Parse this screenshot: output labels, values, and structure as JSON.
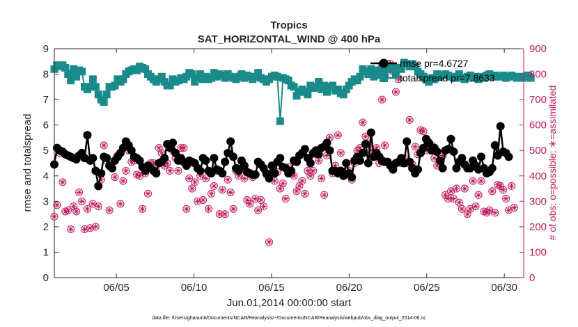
{
  "chart_data": {
    "type": "line",
    "title": "Tropics",
    "subtitle": "SAT_HORIZONTAL_WIND @ 400 hPa",
    "xlabel": "Jun.01,2014 00:00:00 start",
    "ylabel": "rmse and totalspread",
    "ylabel_right": "# of obs: o=possible; ∗=assimilated",
    "footnote": "data file: /Users/gharamti/Documents/NCAR/Reanalysis/~/Documents/NCAR/Reanalysis/webpub/obs_diag_output_2014-06.nc",
    "xlim": [
      1,
      31.25
    ],
    "ylim": [
      0,
      9
    ],
    "ylim_right": [
      0,
      900
    ],
    "x_ticks": [
      5,
      10,
      15,
      20,
      25,
      30
    ],
    "x_tick_labels": [
      "06/05",
      "06/10",
      "06/15",
      "06/20",
      "06/25",
      "06/30"
    ],
    "y_ticks": [
      "0",
      "1",
      "2",
      "3",
      "4",
      "5",
      "6",
      "7",
      "8",
      "9"
    ],
    "y_ticks_right": [
      "0",
      "100",
      "200",
      "300",
      "400",
      "500",
      "600",
      "700",
      "800",
      "900"
    ],
    "colors": {
      "rmse": "#000000",
      "spread": "#1a8a8a",
      "obs": "#c2185b",
      "axis": "#262626"
    },
    "series": [
      {
        "name": "rmse",
        "legend": "rmse pr=4.6727",
        "axis": "left",
        "values": [
          4.45,
          5.1,
          5.0,
          4.95,
          4.85,
          4.8,
          4.75,
          4.7,
          4.65,
          4.8,
          4.9,
          4.7,
          5.6,
          4.6,
          4.7,
          4.2,
          3.6,
          4.1,
          4.75,
          4.7,
          4.4,
          4.3,
          4.6,
          4.75,
          4.9,
          5.1,
          5.35,
          5.2,
          5.0,
          4.75,
          4.7,
          4.6,
          4.35,
          4.2,
          4.4,
          4.3,
          4.2,
          4.1,
          4.5,
          4.55,
          4.7,
          5.25,
          5.1,
          5.3,
          4.9,
          4.6,
          4.7,
          4.55,
          4.4,
          4.6,
          4.55,
          4.5,
          4.3,
          4.2,
          4.7,
          4.6,
          4.2,
          4.1,
          4.7,
          4.25,
          4.2,
          4.1,
          4.55,
          4.9,
          5.35,
          4.75,
          4.3,
          4.2,
          4.6,
          4.4,
          4.15,
          4.1,
          4.05,
          4.05,
          4.55,
          4.45,
          4.3,
          4.1,
          3.9,
          4.4,
          4.1,
          4.55,
          4.7,
          4.35,
          4.3,
          4.1,
          4.2,
          4.6,
          4.55,
          4.8,
          4.9,
          5.05,
          4.7,
          4.5,
          4.9,
          5.0,
          4.85,
          5.1,
          5.15,
          5.3,
          5.0,
          4.2,
          4.2,
          4.1,
          4.2,
          4.0,
          4.5,
          4.1,
          3.95,
          4.6,
          4.75,
          4.6,
          4.9,
          5.25,
          4.5,
          5.7,
          4.75,
          4.9,
          4.75,
          4.6,
          4.55,
          4.55,
          4.4,
          4.25,
          4.5,
          4.55,
          4.7,
          4.5,
          5.35,
          4.55,
          4.3,
          4.1,
          4.25,
          4.9,
          5.1,
          5.45,
          5.3,
          5.0,
          5.1,
          4.95,
          4.6,
          4.3,
          5.0,
          5.05,
          5.45,
          4.95,
          4.3,
          4.55,
          4.7,
          4.45,
          4.3,
          4.3,
          4.6,
          4.4,
          4.25,
          4.75,
          4.3,
          4.1,
          4.15,
          4.3,
          5.2,
          4.8,
          5.95,
          4.95,
          4.9,
          4.75
        ]
      },
      {
        "name": "totalspread",
        "legend": "totalspread pr=7.8633",
        "axis": "left",
        "values": [
          8.2,
          8.35,
          8.3,
          8.35,
          8.25,
          8.0,
          7.75,
          8.2,
          7.9,
          8.15,
          8.1,
          7.5,
          7.4,
          7.5,
          7.8,
          7.5,
          7.2,
          7.0,
          6.9,
          7.2,
          7.5,
          7.5,
          7.55,
          7.8,
          7.7,
          7.8,
          8.0,
          8.1,
          8.15,
          8.2,
          8.15,
          8.3,
          8.25,
          8.2,
          8.0,
          7.9,
          7.8,
          7.7,
          7.8,
          7.9,
          7.7,
          7.55,
          7.55,
          7.8,
          7.7,
          7.75,
          7.85,
          7.8,
          7.9,
          8.05,
          8.0,
          7.7,
          7.85,
          8.0,
          7.8,
          7.9,
          7.8,
          7.85,
          8.05,
          7.9,
          8.0,
          7.95,
          7.85,
          8.0,
          7.9,
          7.85,
          7.8,
          7.9,
          8.0,
          7.85,
          7.95,
          7.9,
          7.8,
          7.9,
          8.05,
          7.85,
          7.8,
          7.7,
          7.8,
          7.9,
          7.95,
          7.9,
          6.15,
          7.85,
          7.8,
          7.75,
          7.55,
          7.5,
          7.15,
          7.3,
          7.4,
          7.3,
          7.2,
          7.55,
          7.45,
          7.5,
          7.7,
          7.4,
          7.55,
          7.3,
          7.5,
          7.55,
          7.35,
          7.4,
          7.25,
          7.2,
          7.4,
          7.55,
          7.7,
          7.8,
          7.75,
          7.9,
          8.2,
          8.1,
          8.0,
          8.2,
          7.9,
          8.15,
          8.0,
          8.25,
          7.95,
          8.2,
          8.2,
          8.25,
          8.0,
          8.25,
          8.2,
          8.45,
          8.4,
          8.3,
          8.4,
          8.3,
          8.1,
          8.0,
          7.9,
          7.8,
          7.7,
          7.85,
          7.8,
          8.0,
          7.9,
          7.95,
          8.0,
          7.95,
          7.9,
          7.85,
          7.9,
          8.0,
          7.85,
          7.8,
          7.9,
          7.95,
          7.85,
          7.9,
          7.8,
          7.9,
          7.85,
          7.95,
          8.0,
          7.9,
          7.95,
          7.9,
          7.9,
          7.95,
          7.85,
          7.9,
          7.95,
          7.9,
          7.85,
          7.9,
          7.85,
          7.9,
          7.95,
          7.85
        ]
      },
      {
        "name": "obs_possible",
        "axis": "right",
        "values": [
          240,
          285,
          490,
          375,
          260,
          265,
          190,
          280,
          260,
          335,
          300,
          190,
          270,
          195,
          290,
          200,
          280,
          385,
          520,
          460,
          265,
          430,
          395,
          480,
          290,
          380,
          420,
          500,
          455,
          460,
          405,
          400,
          270,
          410,
          330,
          450,
          450,
          420,
          510,
          490,
          440,
          450,
          420,
          500,
          470,
          420,
          510,
          510,
          270,
          390,
          350,
          375,
          300,
          400,
          305,
          390,
          270,
          330,
          360,
          420,
          250,
          345,
          250,
          385,
          335,
          270,
          420,
          400,
          440,
          390,
          305,
          290,
          395,
          310,
          265,
          305,
          280,
          405,
          140,
          415,
          380,
          415,
          350,
          370,
          310,
          435,
          410,
          400,
          340,
          360,
          380,
          330,
          420,
          400,
          420,
          485,
          460,
          390,
          325,
          480,
          550,
          410,
          440,
          560,
          490,
          400,
          450,
          420,
          385,
          450,
          500,
          510,
          610,
          555,
          525,
          500,
          480,
          510,
          450,
          700,
          520,
          840,
          840,
          810,
          730,
          780,
          450,
          470,
          450,
          620,
          445,
          515,
          485,
          580,
          575,
          500,
          530,
          520,
          470,
          440,
          455,
          480,
          325,
          310,
          340,
          310,
          350,
          295,
          270,
          350,
          250,
          270,
          380,
          280,
          325,
          380,
          260,
          255,
          265,
          340,
          255,
          365,
          360,
          345,
          310,
          265,
          360,
          275
        ]
      },
      {
        "name": "obs_assimilated",
        "axis": "right",
        "values": [
          240,
          285,
          490,
          375,
          260,
          265,
          190,
          280,
          260,
          335,
          300,
          190,
          270,
          195,
          290,
          200,
          280,
          385,
          520,
          460,
          265,
          430,
          395,
          480,
          290,
          380,
          420,
          500,
          455,
          460,
          405,
          400,
          270,
          410,
          330,
          450,
          450,
          420,
          510,
          490,
          440,
          450,
          420,
          500,
          470,
          420,
          510,
          510,
          270,
          390,
          350,
          375,
          300,
          400,
          305,
          390,
          270,
          330,
          360,
          420,
          250,
          345,
          250,
          385,
          335,
          270,
          420,
          400,
          440,
          390,
          305,
          290,
          395,
          310,
          265,
          305,
          280,
          405,
          140,
          415,
          380,
          415,
          350,
          370,
          310,
          435,
          410,
          400,
          340,
          360,
          380,
          330,
          420,
          400,
          420,
          485,
          460,
          390,
          325,
          480,
          550,
          410,
          440,
          560,
          490,
          400,
          450,
          420,
          385,
          450,
          500,
          510,
          610,
          555,
          525,
          500,
          480,
          510,
          450,
          700,
          520,
          840,
          840,
          810,
          730,
          780,
          450,
          470,
          450,
          620,
          445,
          515,
          485,
          580,
          575,
          500,
          530,
          520,
          470,
          440,
          455,
          480,
          325,
          310,
          340,
          310,
          350,
          295,
          270,
          350,
          250,
          270,
          380,
          280,
          325,
          380,
          260,
          255,
          265,
          340,
          255,
          365,
          360,
          345,
          310,
          265,
          360,
          275
        ]
      }
    ]
  }
}
